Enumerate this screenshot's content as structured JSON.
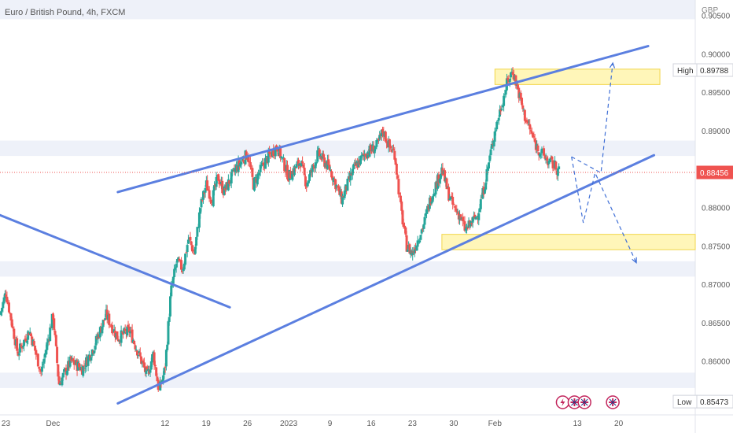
{
  "header": {
    "title": "Euro / British Pound, 4h, FXCM",
    "currency": "GBP"
  },
  "chart_data": {
    "type": "candlestick",
    "symbol": "Euro / British Pound",
    "interval": "4h",
    "source": "FXCM",
    "y_axis": {
      "ticks": [
        "0.90500",
        "0.90000",
        "0.89500",
        "0.89000",
        "0.88500",
        "0.88000",
        "0.87500",
        "0.87000",
        "0.86500",
        "0.86000"
      ],
      "range": [
        0.853,
        0.907
      ]
    },
    "x_axis": {
      "ticks": [
        {
          "label": "23",
          "t": 1
        },
        {
          "label": "Dec",
          "t": 9
        },
        {
          "label": "12",
          "t": 28
        },
        {
          "label": "19",
          "t": 35
        },
        {
          "label": "26",
          "t": 42
        },
        {
          "label": "2023",
          "t": 49
        },
        {
          "label": "9",
          "t": 56
        },
        {
          "label": "16",
          "t": 63
        },
        {
          "label": "23",
          "t": 70
        },
        {
          "label": "30",
          "t": 77
        },
        {
          "label": "Feb",
          "t": 84
        },
        {
          "label": "13",
          "t": 98
        },
        {
          "label": "20",
          "t": 105
        }
      ],
      "range": [
        0,
        118
      ]
    },
    "markers": [
      {
        "label": "High",
        "value": "0.89788",
        "price": 0.89788
      },
      {
        "label": "",
        "value": "0.88456",
        "price": 0.88456
      },
      {
        "label": "Low",
        "value": "0.85473",
        "price": 0.85473
      }
    ],
    "current_price": 0.88456,
    "ohlc_path": [
      [
        0,
        0.866
      ],
      [
        1,
        0.869
      ],
      [
        3,
        0.861
      ],
      [
        5,
        0.864
      ],
      [
        7,
        0.8585
      ],
      [
        9,
        0.866
      ],
      [
        10,
        0.857
      ],
      [
        12,
        0.86
      ],
      [
        14,
        0.859
      ],
      [
        16,
        0.862
      ],
      [
        18,
        0.866
      ],
      [
        20,
        0.863
      ],
      [
        22,
        0.864
      ],
      [
        24,
        0.86
      ],
      [
        25,
        0.858
      ],
      [
        26,
        0.861
      ],
      [
        27,
        0.856
      ],
      [
        28,
        0.859
      ],
      [
        29,
        0.869
      ],
      [
        30,
        0.873
      ],
      [
        31,
        0.872
      ],
      [
        32,
        0.876
      ],
      [
        33,
        0.874
      ],
      [
        34,
        0.88
      ],
      [
        35,
        0.883
      ],
      [
        36,
        0.881
      ],
      [
        37,
        0.884
      ],
      [
        38,
        0.882
      ],
      [
        40,
        0.885
      ],
      [
        42,
        0.887
      ],
      [
        43,
        0.883
      ],
      [
        45,
        0.886
      ],
      [
        47,
        0.888
      ],
      [
        49,
        0.884
      ],
      [
        51,
        0.886
      ],
      [
        52,
        0.883
      ],
      [
        54,
        0.887
      ],
      [
        56,
        0.885
      ],
      [
        58,
        0.881
      ],
      [
        60,
        0.885
      ],
      [
        62,
        0.887
      ],
      [
        64,
        0.888
      ],
      [
        65,
        0.89
      ],
      [
        66,
        0.888
      ],
      [
        67,
        0.887
      ],
      [
        68,
        0.88
      ],
      [
        69,
        0.875
      ],
      [
        70,
        0.874
      ],
      [
        71,
        0.876
      ],
      [
        72,
        0.878
      ],
      [
        73,
        0.881
      ],
      [
        74,
        0.883
      ],
      [
        75,
        0.885
      ],
      [
        76,
        0.882
      ],
      [
        77,
        0.88
      ],
      [
        78,
        0.879
      ],
      [
        79,
        0.877
      ],
      [
        80,
        0.878
      ],
      [
        81,
        0.879
      ],
      [
        82,
        0.882
      ],
      [
        83,
        0.886
      ],
      [
        84,
        0.89
      ],
      [
        85,
        0.893
      ],
      [
        86,
        0.896
      ],
      [
        87,
        0.8979
      ],
      [
        88,
        0.895
      ],
      [
        89,
        0.892
      ],
      [
        90,
        0.89
      ],
      [
        91,
        0.888
      ],
      [
        92,
        0.887
      ],
      [
        93,
        0.886
      ],
      [
        94,
        0.8855
      ],
      [
        95,
        0.8846
      ]
    ],
    "zones": [
      {
        "name": "resistance-zone",
        "t0": 84,
        "t1": 112,
        "p0": 0.896,
        "p1": 0.898
      },
      {
        "name": "support-zone",
        "t0": 75,
        "t1": 118,
        "p0": 0.8745,
        "p1": 0.8765
      }
    ],
    "bands": [
      {
        "p0": 0.9045,
        "p1": 0.907
      },
      {
        "p0": 0.8867,
        "p1": 0.8887
      },
      {
        "p0": 0.871,
        "p1": 0.873
      },
      {
        "p0": 0.8565,
        "p1": 0.8585
      }
    ],
    "trendlines": [
      {
        "name": "channel-upper",
        "p1": [
          20,
          0.882
        ],
        "p2": [
          110,
          0.901
        ]
      },
      {
        "name": "channel-lower",
        "p1": [
          20,
          0.8545
        ],
        "p2": [
          111,
          0.8868
        ]
      },
      {
        "name": "downtrend-line",
        "p1": [
          0,
          0.879
        ],
        "p2": [
          39,
          0.867
        ]
      }
    ],
    "projections": [
      {
        "name": "bullish-path",
        "points": [
          [
            97,
            0.8866
          ],
          [
            102,
            0.8845
          ],
          [
            104,
            0.8988
          ]
        ]
      },
      {
        "name": "bearish-path",
        "points": [
          [
            97,
            0.8866
          ],
          [
            99,
            0.878
          ],
          [
            101,
            0.8845
          ],
          [
            108,
            0.8728
          ]
        ]
      }
    ],
    "events": [
      {
        "name": "flash-event-icon",
        "t": 95.5
      },
      {
        "name": "uk-flag-event-icon",
        "t": 97.5
      },
      {
        "name": "uk-flag-event-icon",
        "t": 99.2
      },
      {
        "name": "uk-flag-event-icon",
        "t": 104
      }
    ]
  }
}
